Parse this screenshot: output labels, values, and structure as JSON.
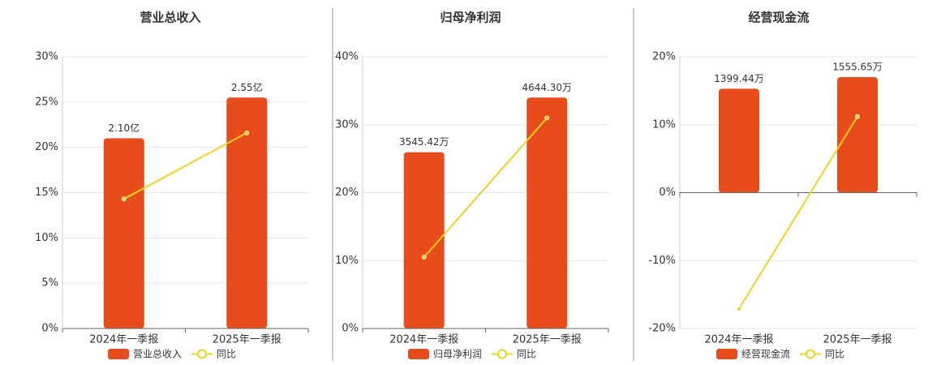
{
  "chart_data": [
    {
      "type": "bar-line",
      "title": "营业总收入",
      "categories": [
        "2024年一季报",
        "2025年一季报"
      ],
      "series": [
        {
          "name": "营业总收入",
          "color": "#e84c1a",
          "type": "bar",
          "values": [
            2.1,
            2.55
          ],
          "value_labels": [
            "2.10亿",
            "2.55亿"
          ]
        },
        {
          "name": "同比",
          "color": "#f0d21c",
          "type": "line",
          "values": [
            14.3,
            21.6
          ]
        }
      ],
      "ylim": [
        0,
        30
      ],
      "yticks": [
        {
          "value": 0,
          "label": "0%"
        },
        {
          "value": 5,
          "label": "5%"
        },
        {
          "value": 10,
          "label": "10%"
        },
        {
          "value": 15,
          "label": "15%"
        },
        {
          "value": 20,
          "label": "20%"
        },
        {
          "value": 25,
          "label": "25%"
        },
        {
          "value": 30,
          "label": "30%"
        }
      ],
      "grid": true
    },
    {
      "type": "bar-line",
      "title": "归母净利润",
      "categories": [
        "2024年一季报",
        "2025年一季报"
      ],
      "series": [
        {
          "name": "归母净利润",
          "color": "#e84c1a",
          "type": "bar",
          "values": [
            3545.42,
            4644.3
          ],
          "value_labels": [
            "3545.42万",
            "4644.30万"
          ]
        },
        {
          "name": "同比",
          "color": "#f0d21c",
          "type": "line",
          "values": [
            10.5,
            31.0
          ]
        }
      ],
      "ylim": [
        0,
        40
      ],
      "yticks": [
        {
          "value": 0,
          "label": "0%"
        },
        {
          "value": 10,
          "label": "10%"
        },
        {
          "value": 20,
          "label": "20%"
        },
        {
          "value": 30,
          "label": "30%"
        },
        {
          "value": 40,
          "label": "40%"
        }
      ],
      "grid": true
    },
    {
      "type": "bar-line",
      "title": "经营现金流",
      "categories": [
        "2024年一季报",
        "2025年一季报"
      ],
      "series": [
        {
          "name": "经营现金流",
          "color": "#e84c1a",
          "type": "bar",
          "values": [
            1399.44,
            1555.65
          ],
          "value_labels": [
            "1399.44万",
            "1555.65万"
          ]
        },
        {
          "name": "同比",
          "color": "#f0d21c",
          "type": "line",
          "values": [
            -17.1,
            11.2
          ]
        }
      ],
      "ylim": [
        -20,
        20
      ],
      "yticks": [
        {
          "value": -20,
          "label": "-20%"
        },
        {
          "value": -10,
          "label": "-10%"
        },
        {
          "value": 0,
          "label": "0%"
        },
        {
          "value": 10,
          "label": "10%"
        },
        {
          "value": 20,
          "label": "20%"
        }
      ],
      "grid": true
    }
  ]
}
